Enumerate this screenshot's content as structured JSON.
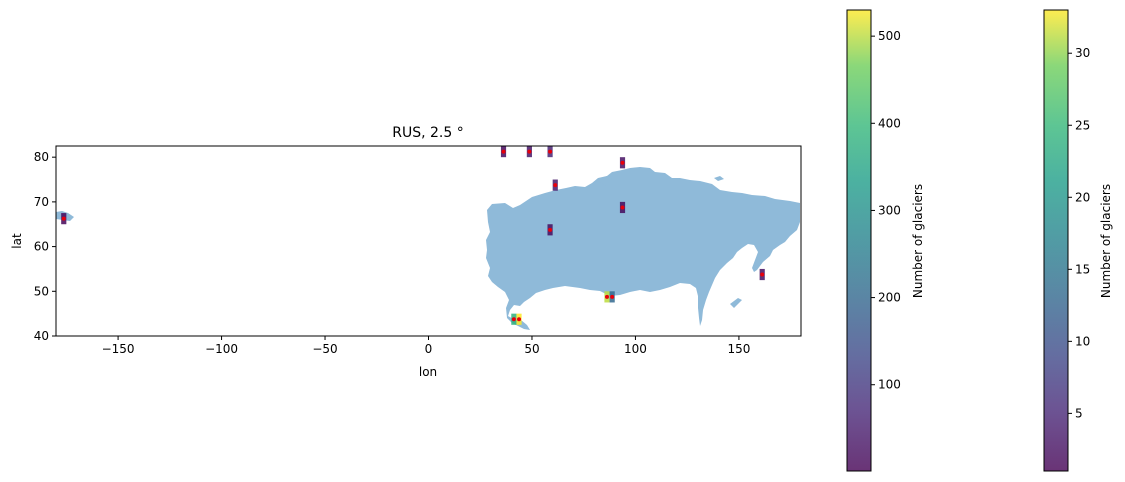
{
  "chart_data": [
    {
      "type": "map",
      "title": "RUS, 2.5 °",
      "xlabel": "lon",
      "ylabel": "lat",
      "xlim": [
        -180,
        180
      ],
      "ylim": [
        40,
        82.5
      ],
      "xticks": [
        -150,
        -100,
        -50,
        0,
        50,
        100,
        150
      ],
      "yticks": [
        40,
        50,
        60,
        70,
        80
      ],
      "grid": false,
      "land_color": "#8fbad9",
      "glacier_point_color": "#e8000b",
      "grid_cell_size_deg": 2.5,
      "cells": [
        {
          "lon": 40.0,
          "lat": 42.5,
          "count": 380
        },
        {
          "lon": 42.5,
          "lat": 42.5,
          "count": 530
        },
        {
          "lon": 85.0,
          "lat": 47.5,
          "count": 500
        },
        {
          "lon": 87.5,
          "lat": 47.5,
          "count": 200
        },
        {
          "lon": 35.0,
          "lat": 80.0,
          "count": 20
        },
        {
          "lon": 47.5,
          "lat": 80.0,
          "count": 40
        },
        {
          "lon": 57.5,
          "lat": 80.0,
          "count": 60
        },
        {
          "lon": 60.0,
          "lat": 72.5,
          "count": 40
        },
        {
          "lon": 92.5,
          "lat": 77.5,
          "count": 30
        },
        {
          "lon": 57.5,
          "lat": 62.5,
          "count": 20
        },
        {
          "lon": 92.5,
          "lat": 67.5,
          "count": 15
        },
        {
          "lon": 160.0,
          "lat": 52.5,
          "count": 25
        },
        {
          "lon": -177.5,
          "lat": 65.0,
          "count": 10
        }
      ]
    },
    {
      "type": "colorbar",
      "label": "Number of glaciers",
      "range": [
        1,
        530
      ],
      "ticks": [
        100,
        200,
        300,
        400,
        500
      ],
      "colormap": "viridis"
    },
    {
      "type": "colorbar",
      "label": "Number of glaciers",
      "range": [
        1,
        33
      ],
      "ticks": [
        5,
        10,
        15,
        20,
        25,
        30
      ],
      "colormap": "viridis"
    }
  ]
}
